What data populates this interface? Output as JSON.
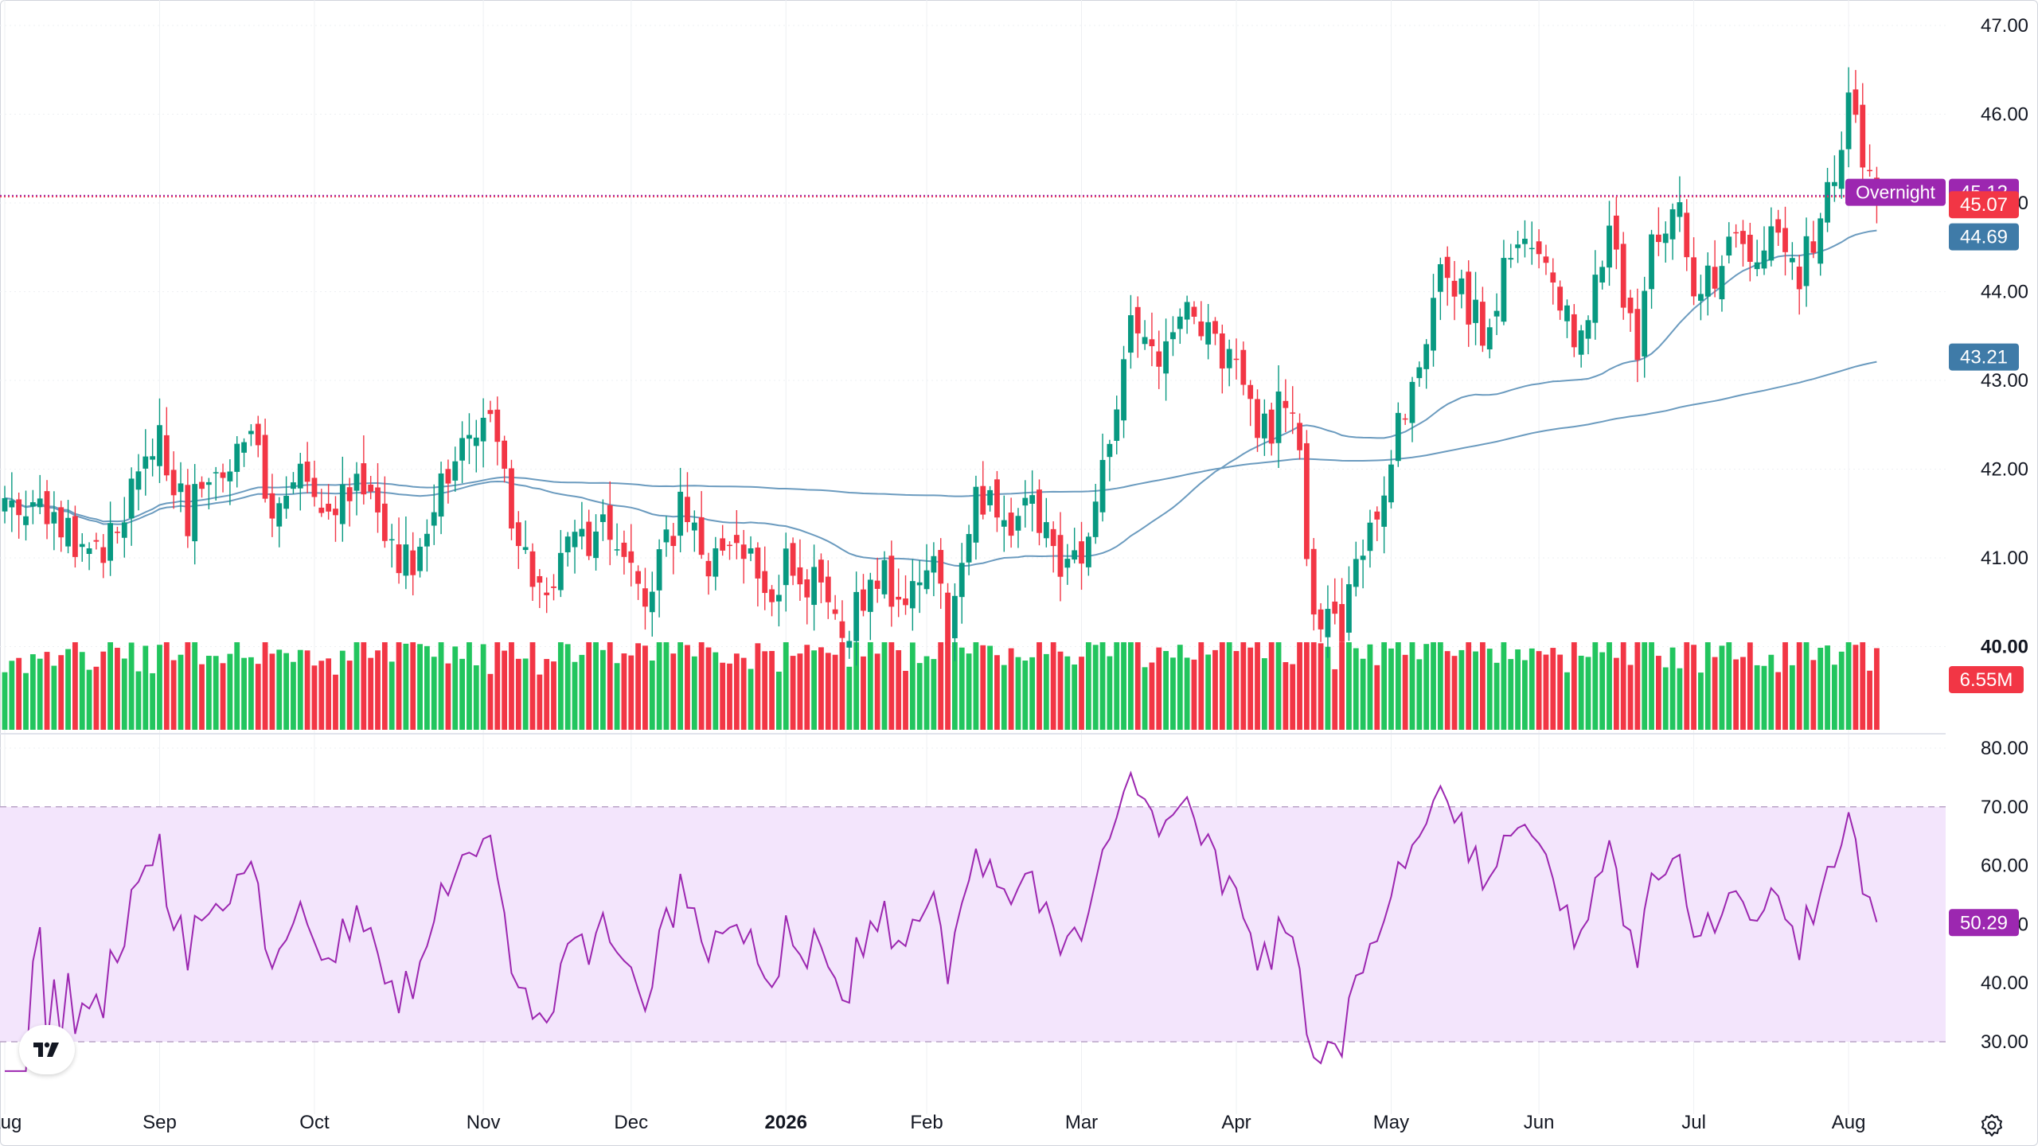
{
  "chart_data": [
    {
      "type": "candlestick",
      "title": "",
      "xlabel": "",
      "ylabel": "",
      "x_tick_labels": [
        "Aug",
        "Sep",
        "Oct",
        "Nov",
        "Dec",
        "2026",
        "Feb",
        "Mar",
        "Apr",
        "May",
        "Jun",
        "Jul",
        "Aug"
      ],
      "y_tick_labels": [
        "47.00",
        "46.00",
        "45.00",
        "44.00",
        "43.00",
        "42.00",
        "41.00",
        "40.00"
      ],
      "ylim": [
        39.0,
        47.3
      ],
      "grid": true,
      "anchors": [
        [
          0,
          41.6
        ],
        [
          8,
          41.4
        ],
        [
          12,
          40.9
        ],
        [
          18,
          41.8
        ],
        [
          22,
          42.3
        ],
        [
          26,
          41.5
        ],
        [
          30,
          41.9
        ],
        [
          34,
          42.4
        ],
        [
          38,
          41.7
        ],
        [
          42,
          42.1
        ],
        [
          46,
          41.6
        ],
        [
          50,
          42.0
        ],
        [
          54,
          41.3
        ],
        [
          58,
          40.8
        ],
        [
          62,
          41.7
        ],
        [
          66,
          42.3
        ],
        [
          70,
          42.5
        ],
        [
          72,
          41.2
        ],
        [
          76,
          40.6
        ],
        [
          80,
          41.2
        ],
        [
          84,
          41.3
        ],
        [
          88,
          41.0
        ],
        [
          92,
          40.6
        ],
        [
          96,
          41.5
        ],
        [
          100,
          41.0
        ],
        [
          104,
          41.1
        ],
        [
          108,
          40.7
        ],
        [
          112,
          41.0
        ],
        [
          116,
          40.5
        ],
        [
          120,
          40.2
        ],
        [
          124,
          40.8
        ],
        [
          128,
          40.4
        ],
        [
          132,
          40.9
        ],
        [
          134,
          40.1
        ],
        [
          138,
          41.9
        ],
        [
          142,
          41.3
        ],
        [
          146,
          41.5
        ],
        [
          150,
          40.9
        ],
        [
          154,
          41.2
        ],
        [
          158,
          42.8
        ],
        [
          160,
          43.5
        ],
        [
          164,
          43.3
        ],
        [
          168,
          43.7
        ],
        [
          172,
          43.6
        ],
        [
          174,
          43.2
        ],
        [
          178,
          42.3
        ],
        [
          182,
          42.8
        ],
        [
          184,
          42.0
        ],
        [
          186,
          40.5
        ],
        [
          190,
          40.3
        ],
        [
          194,
          41.4
        ],
        [
          198,
          42.5
        ],
        [
          202,
          43.5
        ],
        [
          204,
          44.5
        ],
        [
          208,
          43.8
        ],
        [
          210,
          43.6
        ],
        [
          214,
          44.5
        ],
        [
          218,
          44.3
        ],
        [
          220,
          44.0
        ],
        [
          224,
          43.4
        ],
        [
          228,
          44.5
        ],
        [
          232,
          43.3
        ],
        [
          234,
          44.6
        ],
        [
          238,
          45.1
        ],
        [
          240,
          44.1
        ],
        [
          243,
          44.0
        ],
        [
          246,
          44.6
        ],
        [
          250,
          44.3
        ],
        [
          252,
          44.7
        ],
        [
          255,
          44.3
        ],
        [
          258,
          44.9
        ],
        [
          260,
          45.3
        ],
        [
          262,
          46.1
        ],
        [
          264,
          45.4
        ],
        [
          266,
          45.1
        ]
      ],
      "current_price": 45.07,
      "overnight_label": "Overnight",
      "overnight_price": 45.12,
      "moving_averages": [
        {
          "label": "44.69",
          "color": "#6b9bbf",
          "period": 50
        },
        {
          "label": "43.21",
          "color": "#6b9bbf",
          "period": 200
        }
      ],
      "price_labels": {
        "overnight": "45.12",
        "last": "45.07",
        "ma_fast": "44.69",
        "ma_slow": "43.21",
        "volume": "6.55M"
      },
      "volume_last": "6.55M"
    },
    {
      "type": "line",
      "title": "",
      "xlabel": "",
      "ylabel": "",
      "y_tick_labels": [
        "80.00",
        "70.00",
        "60.00",
        "50.00",
        "40.00",
        "30.00"
      ],
      "ylim": [
        25,
        81
      ],
      "band": [
        30,
        70
      ],
      "last_label": "50.29",
      "period": 14
    }
  ],
  "colors": {
    "up": "#26a69a",
    "up_candle": "#089981",
    "up_volume": "#22c55e",
    "down": "#f23645",
    "ma_line": "#6b9bbf",
    "ma_label": "#3f7ba8",
    "rsi_line": "#9c27b0",
    "rsi_band": "#f3e5fc",
    "overnight_badge": "#9c27b0",
    "last_price_badge": "#f23645"
  },
  "icons": {
    "logo": "tradingview-logo-icon",
    "settings": "gear-icon"
  }
}
